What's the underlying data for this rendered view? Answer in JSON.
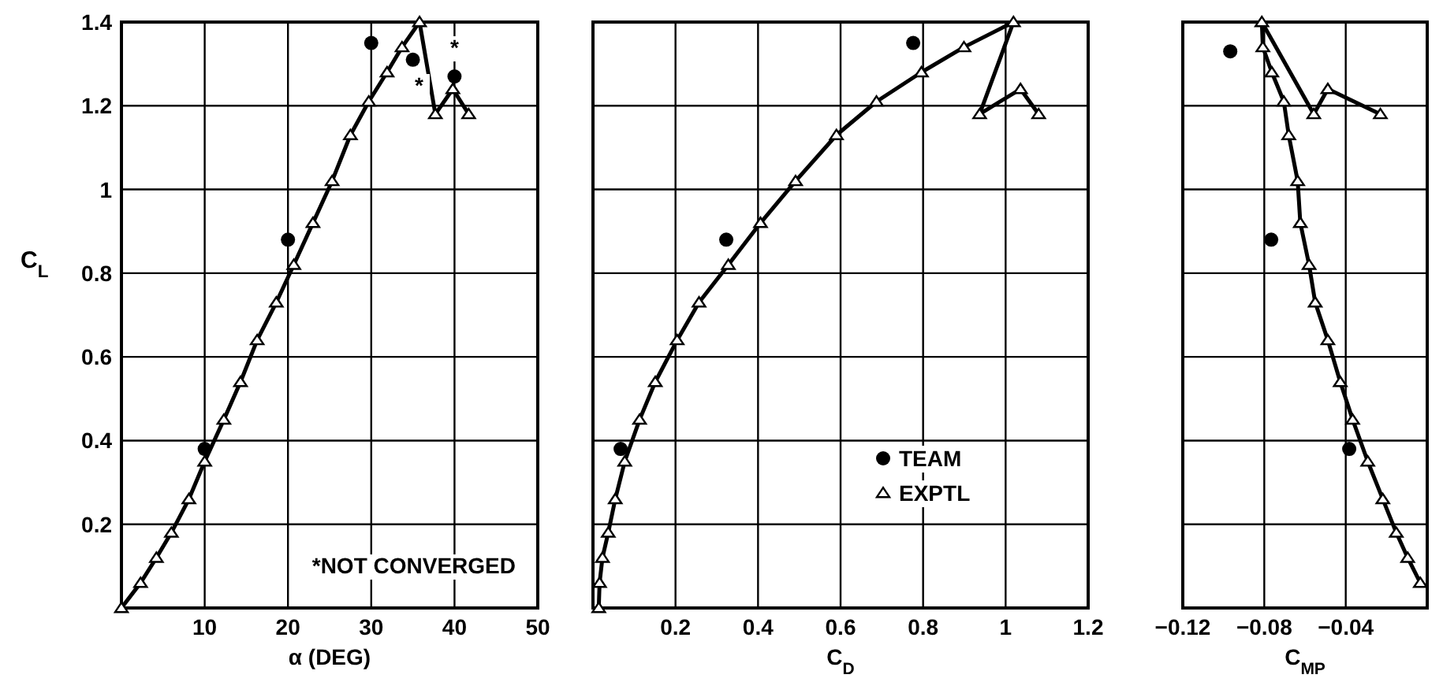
{
  "chart_data": [
    {
      "type": "line",
      "xlabel": "α (DEG)",
      "ylabel": "C$_{L}$",
      "xlim": [
        0,
        50
      ],
      "xticks": [
        10,
        20,
        30,
        40,
        50
      ],
      "ylim": [
        0,
        1.4
      ],
      "yticks": [
        0.2,
        0.4,
        0.6,
        0.8,
        1.0,
        1.2,
        1.4
      ],
      "grid": true,
      "legend": false,
      "series": [
        {
          "type": "scatter",
          "marker": "circle",
          "color": "#000000",
          "x": [
            10,
            20,
            30,
            35,
            40
          ],
          "values": [
            0.38,
            0.88,
            1.35,
            1.31,
            1.27
          ]
        },
        {
          "type": "line",
          "marker": "triangle",
          "color": "#000000",
          "x": [
            0,
            2.3,
            4.2,
            6.0,
            8.1,
            10,
            12.3,
            14.3,
            16.3,
            18.6,
            20.7,
            23,
            25.3,
            27.5,
            29.7,
            31.9,
            33.7,
            35.8,
            37.7,
            39.8,
            41.7
          ],
          "values": [
            0,
            0.06,
            0.12,
            0.18,
            0.26,
            0.35,
            0.45,
            0.54,
            0.64,
            0.73,
            0.82,
            0.92,
            1.02,
            1.13,
            1.21,
            1.28,
            1.34,
            1.4,
            1.18,
            1.24,
            1.18
          ]
        }
      ],
      "annotations": [
        "*NOT CONVERGED",
        "*",
        "*"
      ]
    },
    {
      "type": "line",
      "xlabel": "C$_{D}$",
      "xlim": [
        0,
        1.2
      ],
      "xticks": [
        0.2,
        0.4,
        0.6,
        0.8,
        1.0,
        1.2
      ],
      "ylim": [
        0,
        1.4
      ],
      "yticks": [
        0.2,
        0.4,
        0.6,
        0.8,
        1.0,
        1.2,
        1.4
      ],
      "grid": true,
      "tick_labels": "x",
      "legend": "bottom right",
      "series": [
        {
          "name": "TEAM",
          "type": "scatter",
          "marker": "circle",
          "color": "#000000",
          "x": [
            0.067,
            0.323,
            0.776
          ],
          "values": [
            0.38,
            0.88,
            1.35
          ]
        },
        {
          "name": "EXPTL",
          "type": "line",
          "marker": "triangle",
          "color": "#000000",
          "x": [
            0.014,
            0.016,
            0.023,
            0.037,
            0.054,
            0.077,
            0.113,
            0.151,
            0.204,
            0.257,
            0.328,
            0.406,
            0.491,
            0.59,
            0.687,
            0.796,
            0.899,
            1.019,
            0.937,
            1.036,
            1.08
          ],
          "values": [
            0,
            0.06,
            0.12,
            0.18,
            0.26,
            0.35,
            0.45,
            0.54,
            0.64,
            0.73,
            0.82,
            0.92,
            1.02,
            1.13,
            1.21,
            1.28,
            1.34,
            1.4,
            1.18,
            1.24,
            1.18
          ]
        }
      ]
    },
    {
      "type": "line",
      "xlabel": "C$_{MP}$",
      "xlim": [
        -0.12,
        0
      ],
      "xticks": [
        -0.12,
        -0.08,
        -0.04
      ],
      "ylim": [
        0,
        1.4
      ],
      "yticks": [
        0.2,
        0.4,
        0.6,
        0.8,
        1.0,
        1.2,
        1.4
      ],
      "grid": true,
      "tick_labels": "x",
      "legend": false,
      "series": [
        {
          "type": "scatter",
          "marker": "circle",
          "color": "#000000",
          "x": [
            -0.0967,
            -0.0766,
            -0.0383
          ],
          "values": [
            1.33,
            0.88,
            0.38
          ]
        },
        {
          "type": "line",
          "marker": "triangle",
          "color": "#000000",
          "x": [
            -0.0034,
            -0.0096,
            -0.0152,
            -0.0218,
            -0.0292,
            -0.0366,
            -0.0427,
            -0.0488,
            -0.055,
            -0.058,
            -0.0623,
            -0.0636,
            -0.068,
            -0.0704,
            -0.0763,
            -0.0807,
            -0.0812,
            -0.0557,
            -0.0488,
            -0.023
          ],
          "values": [
            0.06,
            0.12,
            0.18,
            0.26,
            0.35,
            0.45,
            0.54,
            0.64,
            0.73,
            0.82,
            0.92,
            1.02,
            1.13,
            1.21,
            1.28,
            1.34,
            1.4,
            1.18,
            1.24,
            1.18
          ]
        }
      ]
    }
  ]
}
